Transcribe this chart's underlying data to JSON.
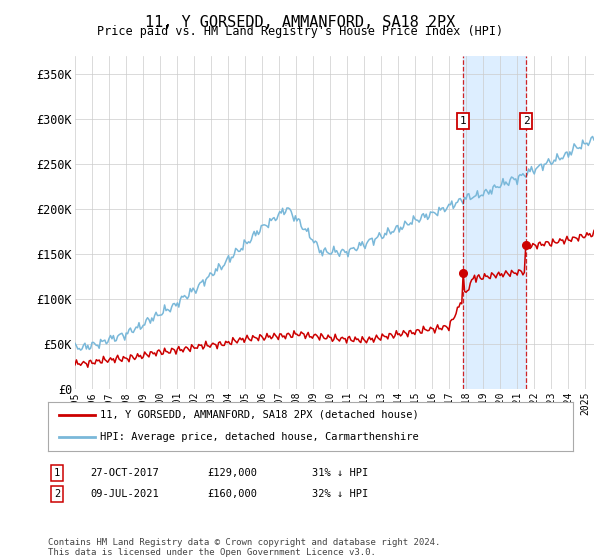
{
  "title": "11, Y GORSEDD, AMMANFORD, SA18 2PX",
  "subtitle": "Price paid vs. HM Land Registry's House Price Index (HPI)",
  "ylabel_ticks": [
    "£0",
    "£50K",
    "£100K",
    "£150K",
    "£200K",
    "£250K",
    "£300K",
    "£350K"
  ],
  "ytick_vals": [
    0,
    50000,
    100000,
    150000,
    200000,
    250000,
    300000,
    350000
  ],
  "ylim": [
    0,
    370000
  ],
  "xlim_start": 1995.0,
  "xlim_end": 2025.5,
  "sale1_date": 2017.82,
  "sale1_price": 129000,
  "sale1_label": "1",
  "sale2_date": 2021.52,
  "sale2_price": 160000,
  "sale2_label": "2",
  "hpi_color": "#7ab8d9",
  "price_color": "#cc0000",
  "annotation_box_color": "#cc0000",
  "shaded_region_color": "#ddeeff",
  "legend_label_price": "11, Y GORSEDD, AMMANFORD, SA18 2PX (detached house)",
  "legend_label_hpi": "HPI: Average price, detached house, Carmarthenshire",
  "table_row1": [
    "1",
    "27-OCT-2017",
    "£129,000",
    "31% ↓ HPI"
  ],
  "table_row2": [
    "2",
    "09-JUL-2021",
    "£160,000",
    "32% ↓ HPI"
  ],
  "footnote": "Contains HM Land Registry data © Crown copyright and database right 2024.\nThis data is licensed under the Open Government Licence v3.0.",
  "background_color": "#ffffff",
  "grid_color": "#cccccc",
  "xtick_years": [
    1995,
    1996,
    1997,
    1998,
    1999,
    2000,
    2001,
    2002,
    2003,
    2004,
    2005,
    2006,
    2007,
    2008,
    2009,
    2010,
    2011,
    2012,
    2013,
    2014,
    2015,
    2016,
    2017,
    2018,
    2019,
    2020,
    2021,
    2022,
    2023,
    2024,
    2025
  ]
}
